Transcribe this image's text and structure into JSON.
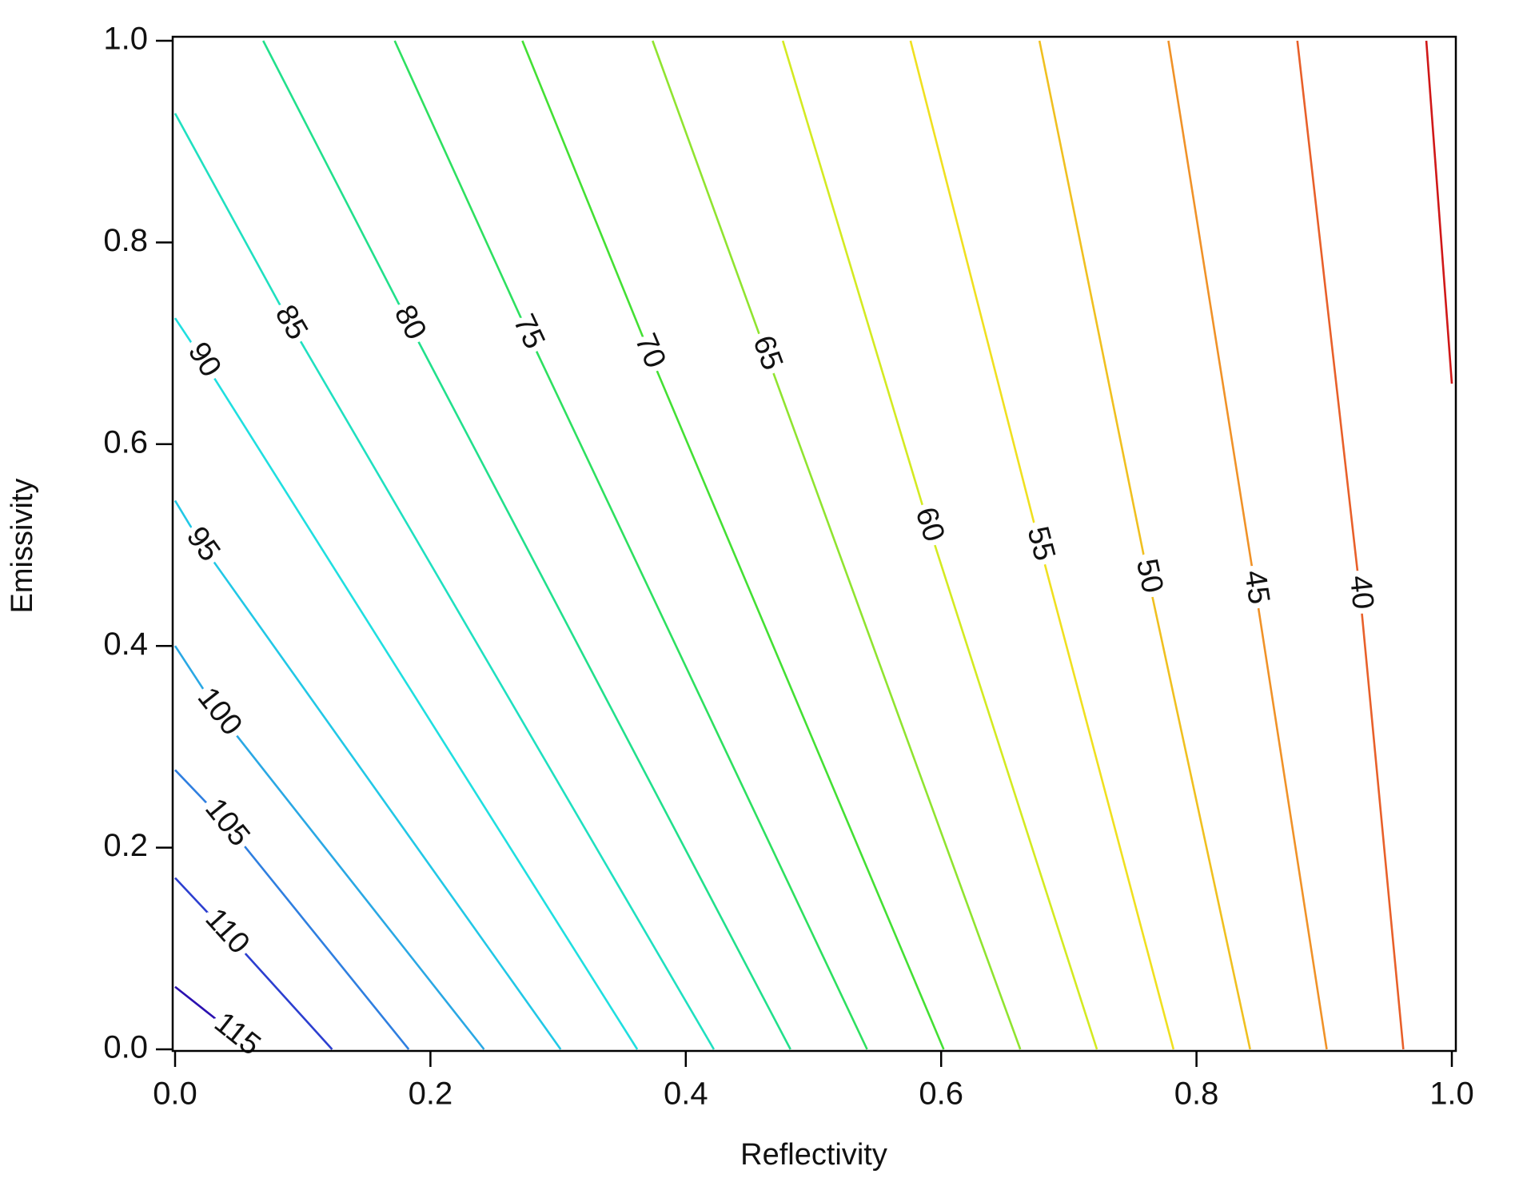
{
  "chart_data": {
    "type": "contour",
    "x_label": "Reflectivity",
    "y_label": "Emissivity",
    "xlim": [
      0,
      1
    ],
    "ylim": [
      0,
      1
    ],
    "xticks": [
      {
        "value": 0,
        "label": "0.0"
      },
      {
        "value": 0.2,
        "label": "0.2"
      },
      {
        "value": 0.4,
        "label": "0.4"
      },
      {
        "value": 0.6,
        "label": "0.6"
      },
      {
        "value": 0.8,
        "label": "0.8"
      },
      {
        "value": 1,
        "label": "1.0"
      }
    ],
    "yticks": [
      {
        "value": 0,
        "label": "0.0"
      },
      {
        "value": 0.2,
        "label": "0.2"
      },
      {
        "value": 0.4,
        "label": "0.4"
      },
      {
        "value": 0.6,
        "label": "0.6"
      },
      {
        "value": 0.8,
        "label": "0.8"
      },
      {
        "value": 1,
        "label": "1.0"
      }
    ],
    "series": [
      {
        "level": 115,
        "color": "#2a10b0",
        "x": [
          0,
          0.048,
          0.062
        ],
        "y": [
          0.062,
          0.014,
          0
        ]
      },
      {
        "level": 110,
        "color": "#2c3fd0",
        "x": [
          0,
          0.04,
          0.123
        ],
        "y": [
          0.17,
          0.116,
          0
        ]
      },
      {
        "level": 105,
        "color": "#2f7fe0",
        "x": [
          0,
          0.04,
          0.183
        ],
        "y": [
          0.277,
          0.224,
          0
        ]
      },
      {
        "level": 100,
        "color": "#2aa8e4",
        "x": [
          0,
          0.034,
          0.242
        ],
        "y": [
          0.4,
          0.334,
          0
        ]
      },
      {
        "level": 95,
        "color": "#22c8e6",
        "x": [
          0,
          0.021,
          0.302
        ],
        "y": [
          0.544,
          0.5,
          0
        ]
      },
      {
        "level": 90,
        "color": "#20dfe0",
        "x": [
          0,
          0.022,
          0.362
        ],
        "y": [
          0.725,
          0.683,
          0
        ]
      },
      {
        "level": 85,
        "color": "#20e0c0",
        "x": [
          0,
          0.09,
          0.422
        ],
        "y": [
          0.928,
          0.72,
          0
        ]
      },
      {
        "level": 80,
        "color": "#22e08c",
        "x": [
          0.069,
          0.183,
          0.482
        ],
        "y": [
          1,
          0.72,
          0
        ]
      },
      {
        "level": 75,
        "color": "#2ee060",
        "x": [
          0.172,
          0.276,
          0.542
        ],
        "y": [
          1,
          0.711,
          0
        ]
      },
      {
        "level": 70,
        "color": "#44e034",
        "x": [
          0.272,
          0.371,
          0.602
        ],
        "y": [
          1,
          0.692,
          0
        ]
      },
      {
        "level": 65,
        "color": "#90e430",
        "x": [
          0.374,
          0.463,
          0.662
        ],
        "y": [
          1,
          0.69,
          0
        ]
      },
      {
        "level": 60,
        "color": "#d4ea22",
        "x": [
          0.476,
          0.59,
          0.722
        ],
        "y": [
          1,
          0.52,
          0
        ]
      },
      {
        "level": 55,
        "color": "#f0e020",
        "x": [
          0.576,
          0.677,
          0.782
        ],
        "y": [
          1,
          0.501,
          0
        ]
      },
      {
        "level": 50,
        "color": "#f0c020",
        "x": [
          0.677,
          0.762,
          0.842
        ],
        "y": [
          1,
          0.469,
          0
        ]
      },
      {
        "level": 45,
        "color": "#f09228",
        "x": [
          0.778,
          0.846,
          0.902
        ],
        "y": [
          1,
          0.458,
          0
        ]
      },
      {
        "level": 40,
        "color": "#e8602a",
        "x": [
          0.879,
          0.928,
          0.962
        ],
        "y": [
          1,
          0.453,
          0
        ]
      },
      {
        "color": "#d01818",
        "x": [
          0.98,
          1
        ],
        "y": [
          1,
          0.66
        ]
      }
    ]
  }
}
